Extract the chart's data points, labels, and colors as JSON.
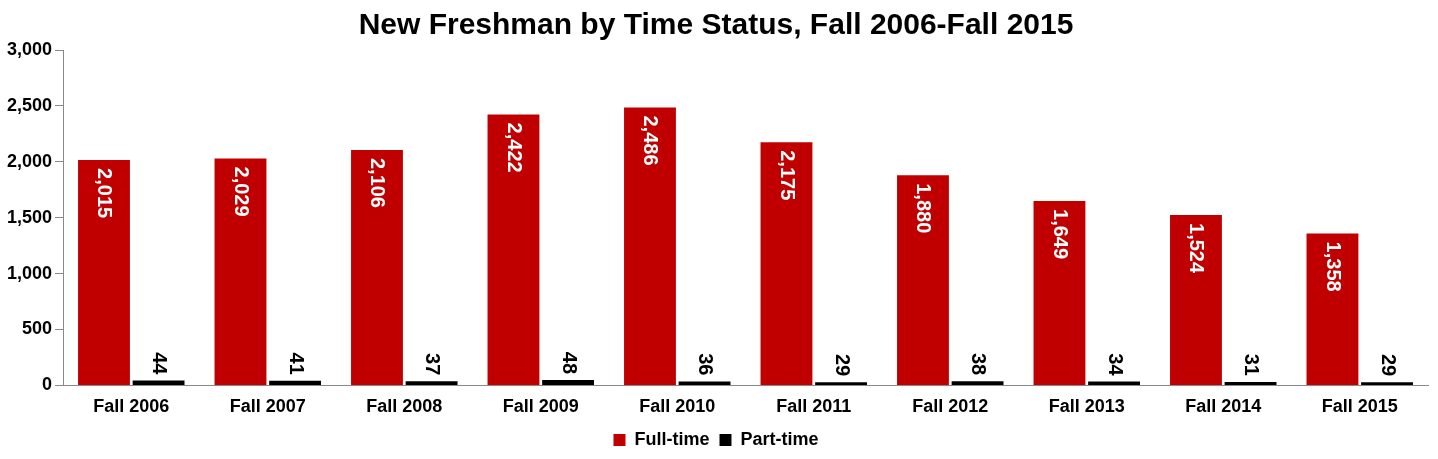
{
  "chart_data": {
    "type": "bar",
    "title": "New Freshman by Time Status, Fall 2006-Fall 2015",
    "categories": [
      "Fall 2006",
      "Fall 2007",
      "Fall 2008",
      "Fall 2009",
      "Fall 2010",
      "Fall 2011",
      "Fall 2012",
      "Fall 2013",
      "Fall 2014",
      "Fall 2015"
    ],
    "series": [
      {
        "name": "Full-time",
        "color": "#c00000",
        "values": [
          2015,
          2029,
          2106,
          2422,
          2486,
          2175,
          1880,
          1649,
          1524,
          1358
        ],
        "value_labels": [
          "2,015",
          "2,029",
          "2,106",
          "2,422",
          "2,486",
          "2,175",
          "1,880",
          "1,649",
          "1,524",
          "1,358"
        ]
      },
      {
        "name": "Part-time",
        "color": "#000000",
        "values": [
          44,
          41,
          37,
          48,
          36,
          29,
          38,
          34,
          31,
          29
        ],
        "value_labels": [
          "44",
          "41",
          "37",
          "48",
          "36",
          "29",
          "38",
          "34",
          "31",
          "29"
        ]
      }
    ],
    "ylim": [
      0,
      3000
    ],
    "yticks": [
      {
        "value": 0,
        "label": "0"
      },
      {
        "value": 500,
        "label": "500"
      },
      {
        "value": 1000,
        "label": "1,000"
      },
      {
        "value": 1500,
        "label": "1,500"
      },
      {
        "value": 2000,
        "label": "2,000"
      },
      {
        "value": 2500,
        "label": "2,500"
      },
      {
        "value": 3000,
        "label": "3,000"
      }
    ],
    "grid": false,
    "legend": "bottom"
  }
}
